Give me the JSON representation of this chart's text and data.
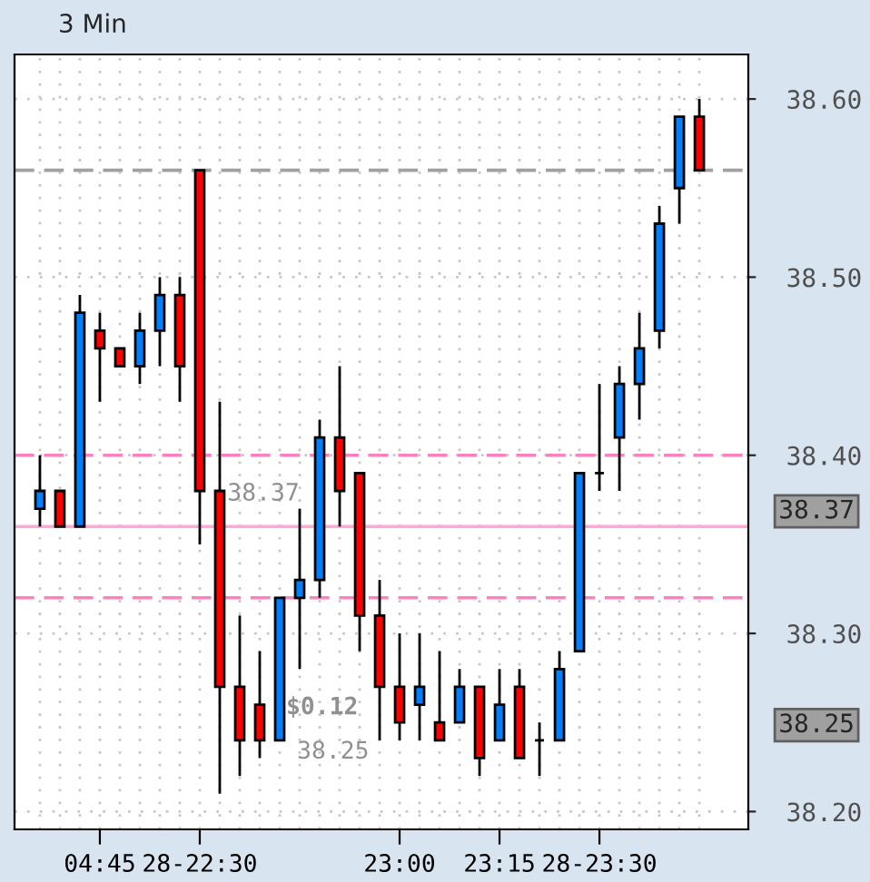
{
  "chart_data": {
    "type": "candlestick",
    "title": "3 Min",
    "categories": [
      null,
      null,
      null,
      "04:45",
      null,
      null,
      null,
      null,
      "28-22:30",
      null,
      null,
      null,
      null,
      null,
      null,
      null,
      null,
      null,
      "23:00",
      null,
      null,
      null,
      null,
      "23:15",
      null,
      null,
      null,
      null,
      "28-23:30",
      null,
      null,
      null,
      null,
      null
    ],
    "ohlc": [
      [
        38.37,
        38.4,
        38.36,
        38.38
      ],
      [
        38.38,
        38.38,
        38.36,
        38.36
      ],
      [
        38.36,
        38.49,
        38.36,
        38.48
      ],
      [
        38.47,
        38.48,
        38.43,
        38.46
      ],
      [
        38.46,
        38.46,
        38.45,
        38.45
      ],
      [
        38.45,
        38.48,
        38.44,
        38.47
      ],
      [
        38.47,
        38.5,
        38.45,
        38.49
      ],
      [
        38.49,
        38.5,
        38.43,
        38.45
      ],
      [
        38.56,
        38.56,
        38.35,
        38.38
      ],
      [
        38.38,
        38.43,
        38.21,
        38.27
      ],
      [
        38.27,
        38.31,
        38.22,
        38.24
      ],
      [
        38.26,
        38.29,
        38.23,
        38.24
      ],
      [
        38.24,
        38.32,
        38.24,
        38.32
      ],
      [
        38.32,
        38.37,
        38.28,
        38.33
      ],
      [
        38.33,
        38.42,
        38.32,
        38.41
      ],
      [
        38.41,
        38.45,
        38.36,
        38.38
      ],
      [
        38.39,
        38.39,
        38.29,
        38.31
      ],
      [
        38.31,
        38.33,
        38.24,
        38.27
      ],
      [
        38.27,
        38.3,
        38.24,
        38.25
      ],
      [
        38.26,
        38.3,
        38.24,
        38.27
      ],
      [
        38.25,
        38.29,
        38.24,
        38.24
      ],
      [
        38.25,
        38.28,
        38.25,
        38.27
      ],
      [
        38.27,
        38.27,
        38.22,
        38.23
      ],
      [
        38.24,
        38.28,
        38.24,
        38.26
      ],
      [
        38.27,
        38.28,
        38.23,
        38.23
      ],
      [
        38.24,
        38.25,
        38.22,
        38.24
      ],
      [
        38.24,
        38.29,
        38.24,
        38.28
      ],
      [
        38.29,
        38.39,
        38.29,
        38.39
      ],
      [
        38.39,
        38.44,
        38.38,
        38.39
      ],
      [
        38.41,
        38.45,
        38.38,
        38.44
      ],
      [
        38.44,
        38.48,
        38.42,
        38.46
      ],
      [
        38.47,
        38.54,
        38.46,
        38.53
      ],
      [
        38.55,
        38.59,
        38.53,
        38.59
      ],
      [
        38.59,
        38.6,
        38.56,
        38.56
      ]
    ],
    "colors": [
      "#0080ff",
      "#ff0000",
      "#0080ff",
      "#ff0000",
      "#ff0000",
      "#0080ff",
      "#0080ff",
      "#ff0000",
      "#ff0000",
      "#ff0000",
      "#ff0000",
      "#ff0000",
      "#0080ff",
      "#0080ff",
      "#0080ff",
      "#ff0000",
      "#ff0000",
      "#ff0000",
      "#ff0000",
      "#0080ff",
      "#ff0000",
      "#0080ff",
      "#ff0000",
      "#0080ff",
      "#ff0000",
      "#000000",
      "#0080ff",
      "#0080ff",
      "#000000",
      "#0080ff",
      "#0080ff",
      "#0080ff",
      "#0080ff",
      "#ff0000"
    ],
    "ylim": [
      38.19,
      38.625
    ],
    "yticks": [
      {
        "value": 38.2,
        "label": "38.20"
      },
      {
        "value": 38.3,
        "label": "38.30"
      },
      {
        "value": 38.4,
        "label": "38.40"
      },
      {
        "value": 38.5,
        "label": "38.50"
      },
      {
        "value": 38.6,
        "label": "38.60"
      }
    ],
    "y2lim": [
      38.19,
      38.625
    ],
    "y2ticks": [
      38.37,
      38.25
    ],
    "ref_lines": [
      {
        "axis": "y",
        "value": 38.56,
        "color": "#a0a0a0",
        "line_style": "dashed"
      },
      {
        "axis": "y",
        "value": 38.36,
        "color": "#ffa8d8",
        "line_style": "solid"
      },
      {
        "axis": "y",
        "value": 38.4,
        "color": "#ff80c0",
        "line_style": "dashed"
      },
      {
        "axis": "y",
        "value": 38.32,
        "color": "#ff80c0",
        "line_style": "dashed"
      }
    ],
    "annotations": [
      "38.37",
      "$0.12",
      "38.25"
    ],
    "grid": true
  }
}
